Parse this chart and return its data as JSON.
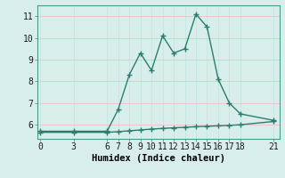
{
  "line1_x": [
    0,
    3,
    6,
    7,
    8,
    9,
    10,
    11,
    12,
    13,
    14,
    15,
    16,
    17,
    18,
    21
  ],
  "line1_y": [
    5.7,
    5.7,
    5.7,
    6.7,
    8.3,
    9.3,
    8.5,
    10.1,
    9.3,
    9.5,
    11.1,
    10.5,
    8.1,
    7.0,
    6.5,
    6.2
  ],
  "line2_x": [
    0,
    3,
    6,
    7,
    8,
    9,
    10,
    11,
    12,
    13,
    14,
    15,
    16,
    17,
    18,
    21
  ],
  "line2_y": [
    5.65,
    5.65,
    5.65,
    5.68,
    5.72,
    5.76,
    5.8,
    5.83,
    5.86,
    5.88,
    5.91,
    5.93,
    5.95,
    5.97,
    6.0,
    6.15
  ],
  "line_color": "#2d7d6e",
  "bg_color": "#d7eeeb",
  "grid_color_v": "#c8e6e2",
  "grid_color_h": "#e8c8c8",
  "xlabel": "Humidex (Indice chaleur)",
  "xticks": [
    0,
    3,
    6,
    7,
    8,
    9,
    10,
    11,
    12,
    13,
    14,
    15,
    16,
    17,
    18,
    21
  ],
  "yticks": [
    6,
    7,
    8,
    9,
    10,
    11
  ],
  "ylim": [
    5.35,
    11.5
  ],
  "xlim": [
    -0.3,
    21.5
  ],
  "marker": "+",
  "markersize": 4,
  "linewidth": 1.0,
  "xlabel_fontsize": 7.5,
  "tick_fontsize": 7
}
